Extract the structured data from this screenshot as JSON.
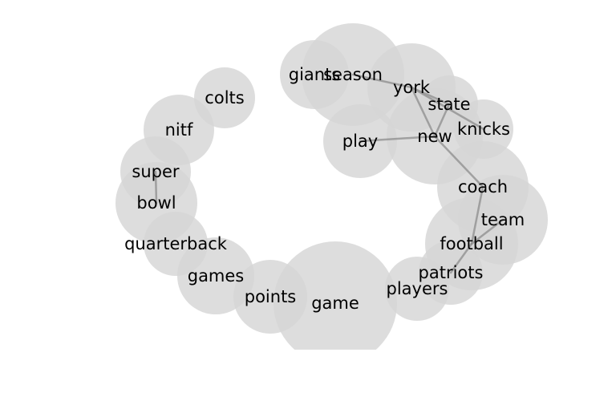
{
  "words": [
    {
      "id": "colts",
      "text": "colts"
    },
    {
      "id": "nitf",
      "text": "nitf"
    },
    {
      "id": "super",
      "text": "super"
    },
    {
      "id": "bowl",
      "text": "bowl"
    },
    {
      "id": "quarterback",
      "text": "quarterback"
    },
    {
      "id": "games",
      "text": "games"
    },
    {
      "id": "points",
      "text": "points"
    },
    {
      "id": "game",
      "text": "game"
    },
    {
      "id": "players",
      "text": "players"
    },
    {
      "id": "patriots",
      "text": "patriots"
    },
    {
      "id": "football",
      "text": "football"
    },
    {
      "id": "team",
      "text": "team"
    },
    {
      "id": "coach",
      "text": "coach"
    },
    {
      "id": "knicks",
      "text": "knicks"
    },
    {
      "id": "new",
      "text": "new"
    },
    {
      "id": "state",
      "text": "state"
    },
    {
      "id": "york",
      "text": "york"
    },
    {
      "id": "season",
      "text": "season"
    },
    {
      "id": "giants",
      "text": "giants"
    },
    {
      "id": "play",
      "text": "play"
    }
  ],
  "links": [
    [
      "super",
      "bowl"
    ],
    [
      "season",
      "york"
    ],
    [
      "york",
      "state"
    ],
    [
      "york",
      "new"
    ],
    [
      "york",
      "knicks"
    ],
    [
      "state",
      "new"
    ],
    [
      "new",
      "play"
    ],
    [
      "new",
      "coach"
    ],
    [
      "coach",
      "football"
    ],
    [
      "football",
      "team"
    ],
    [
      "football",
      "patriots"
    ]
  ]
}
